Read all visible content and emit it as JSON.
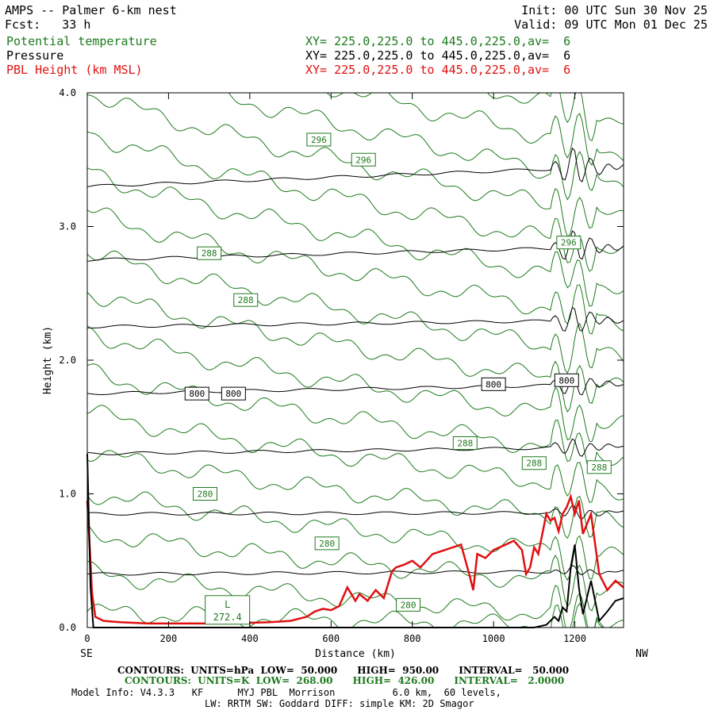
{
  "header": {
    "title": "AMPS -- Palmer 6-km nest",
    "forecast": "Fcst:   33 h",
    "init": "Init: 00 UTC Sun 30 Nov 25",
    "valid": "Valid: 09 UTC Mon 01 Dec 25",
    "fields": [
      {
        "name": "Potential temperature",
        "xy": "XY= 225.0,225.0 to 445.0,225.0,av=  6",
        "color": "#1e7a1e"
      },
      {
        "name": "Pressure",
        "xy": "XY= 225.0,225.0 to 445.0,225.0,av=  6",
        "color": "#000000"
      },
      {
        "name": "PBL Height (km MSL)",
        "xy": "XY= 225.0,225.0 to 445.0,225.0,av=  6",
        "color": "#e01010"
      }
    ]
  },
  "chart_data": {
    "type": "line",
    "title": "AMPS -- Palmer 6-km nest",
    "xlabel": "Distance (km)",
    "ylabel": "Height (km)",
    "xlim": [
      0,
      1320
    ],
    "ylim": [
      0,
      4.0
    ],
    "x_ticks": [
      0,
      200,
      400,
      600,
      800,
      1000,
      1200
    ],
    "y_ticks": [
      0.0,
      1.0,
      2.0,
      3.0,
      4.0
    ],
    "x_tick_labels": [
      "0",
      "200",
      "400",
      "600",
      "800",
      "1000",
      "1200"
    ],
    "y_tick_labels": [
      "0.0",
      "1.0",
      "2.0",
      "3.0",
      "4.0"
    ],
    "left_end_label": "SE",
    "right_end_label": "NW",
    "pressure_contours": {
      "units": "hPa",
      "interval": 50,
      "color": "#000000",
      "levels": [
        {
          "left": 0.4,
          "right": 0.42
        },
        {
          "left": 0.85,
          "right": 0.86
        },
        {
          "left": 1.3,
          "right": 1.35
        },
        {
          "left": 1.75,
          "right": 1.82,
          "label": "800"
        },
        {
          "left": 2.25,
          "right": 2.3
        },
        {
          "left": 2.75,
          "right": 2.85
        },
        {
          "left": 3.3,
          "right": 3.45
        }
      ]
    },
    "theta_contours": {
      "units": "K",
      "interval": 2,
      "color": "#1e7a1e",
      "lines": [
        {
          "a": 0.12,
          "b": 0.0
        },
        {
          "a": 0.42,
          "b": 0.06
        },
        {
          "a": 0.72,
          "b": 0.3
        },
        {
          "a": 1.02,
          "b": 0.52
        },
        {
          "a": 1.32,
          "b": 0.78
        },
        {
          "a": 1.62,
          "b": 1.02
        },
        {
          "a": 1.92,
          "b": 1.28
        },
        {
          "a": 2.22,
          "b": 1.52
        },
        {
          "a": 2.52,
          "b": 1.78
        },
        {
          "a": 2.82,
          "b": 2.02
        },
        {
          "a": 3.12,
          "b": 2.3
        },
        {
          "a": 3.42,
          "b": 2.55
        },
        {
          "a": 3.72,
          "b": 2.8
        },
        {
          "a": 4.02,
          "b": 3.05
        },
        {
          "a": 4.32,
          "b": 3.3
        },
        {
          "a": 4.62,
          "b": 3.55
        },
        {
          "a": 4.92,
          "b": 3.8
        }
      ]
    },
    "contour_labels": [
      {
        "text": "296",
        "x": 570,
        "y": 3.65,
        "color": "#1e7a1e"
      },
      {
        "text": "296",
        "x": 680,
        "y": 3.5,
        "color": "#1e7a1e"
      },
      {
        "text": "296",
        "x": 1185,
        "y": 2.88,
        "color": "#1e7a1e"
      },
      {
        "text": "288",
        "x": 300,
        "y": 2.8,
        "color": "#1e7a1e"
      },
      {
        "text": "288",
        "x": 390,
        "y": 2.45,
        "color": "#1e7a1e"
      },
      {
        "text": "288",
        "x": 930,
        "y": 1.38,
        "color": "#1e7a1e"
      },
      {
        "text": "288",
        "x": 1100,
        "y": 1.23,
        "color": "#1e7a1e"
      },
      {
        "text": "288",
        "x": 1260,
        "y": 1.2,
        "color": "#1e7a1e"
      },
      {
        "text": "280",
        "x": 290,
        "y": 1.0,
        "color": "#1e7a1e"
      },
      {
        "text": "280",
        "x": 590,
        "y": 0.63,
        "color": "#1e7a1e"
      },
      {
        "text": "280",
        "x": 790,
        "y": 0.17,
        "color": "#1e7a1e"
      },
      {
        "text": "800",
        "x": 270,
        "y": 1.75,
        "color": "#000000"
      },
      {
        "text": "800",
        "x": 360,
        "y": 1.75,
        "color": "#000000"
      },
      {
        "text": "800",
        "x": 1000,
        "y": 1.82,
        "color": "#000000"
      },
      {
        "text": "800",
        "x": 1180,
        "y": 1.85,
        "color": "#000000"
      }
    ],
    "low_label": {
      "symbol": "L",
      "value": "272.4",
      "x": 345,
      "y": 0.12,
      "color": "#1e7a1e"
    },
    "series": [
      {
        "name": "PBL Height (km MSL)",
        "color": "#e01010",
        "x": [
          0,
          6,
          12,
          20,
          40,
          80,
          150,
          250,
          350,
          450,
          500,
          540,
          560,
          580,
          600,
          620,
          640,
          660,
          670,
          690,
          710,
          730,
          750,
          760,
          780,
          800,
          820,
          850,
          880,
          920,
          940,
          950,
          960,
          980,
          1000,
          1030,
          1050,
          1070,
          1080,
          1090,
          1100,
          1110,
          1130,
          1140,
          1150,
          1160,
          1170,
          1180,
          1190,
          1200,
          1210,
          1220,
          1240,
          1260,
          1280,
          1300,
          1320
        ],
        "values": [
          0.95,
          0.6,
          0.25,
          0.08,
          0.05,
          0.04,
          0.03,
          0.03,
          0.03,
          0.04,
          0.05,
          0.08,
          0.12,
          0.14,
          0.13,
          0.16,
          0.3,
          0.2,
          0.25,
          0.2,
          0.28,
          0.22,
          0.42,
          0.45,
          0.47,
          0.5,
          0.45,
          0.55,
          0.58,
          0.62,
          0.4,
          0.28,
          0.55,
          0.52,
          0.58,
          0.62,
          0.65,
          0.58,
          0.4,
          0.45,
          0.6,
          0.55,
          0.85,
          0.8,
          0.82,
          0.72,
          0.85,
          0.9,
          0.98,
          0.85,
          0.95,
          0.7,
          0.85,
          0.4,
          0.28,
          0.35,
          0.3
        ]
      },
      {
        "name": "Terrain",
        "color": "#000000",
        "x": [
          0,
          8,
          15,
          30,
          60,
          200,
          400,
          600,
          800,
          1000,
          1100,
          1130,
          1150,
          1160,
          1170,
          1180,
          1190,
          1200,
          1210,
          1220,
          1240,
          1260,
          1280,
          1300,
          1320
        ],
        "values": [
          1.3,
          0.3,
          0.0,
          0.0,
          0.0,
          0.0,
          0.0,
          0.0,
          0.0,
          0.0,
          0.0,
          0.02,
          0.08,
          0.05,
          0.15,
          0.12,
          0.45,
          0.62,
          0.3,
          0.1,
          0.35,
          0.05,
          0.12,
          0.2,
          0.22
        ]
      }
    ]
  },
  "footer": {
    "contours_hpa": "CONTOURS:  UNITS=hPa  LOW=  50.000      HIGH=  950.00      INTERVAL=   50.000",
    "contours_k": "CONTOURS:  UNITS=K  LOW=  268.00      HIGH=  426.00      INTERVAL=   2.0000",
    "model_info": "Model Info: V4.3.3   KF      MYJ PBL  Morrison          6.0 km,  60 levels,",
    "model_info2": "LW: RRTM SW: Goddard DIFF: simple KM: 2D Smagor"
  }
}
